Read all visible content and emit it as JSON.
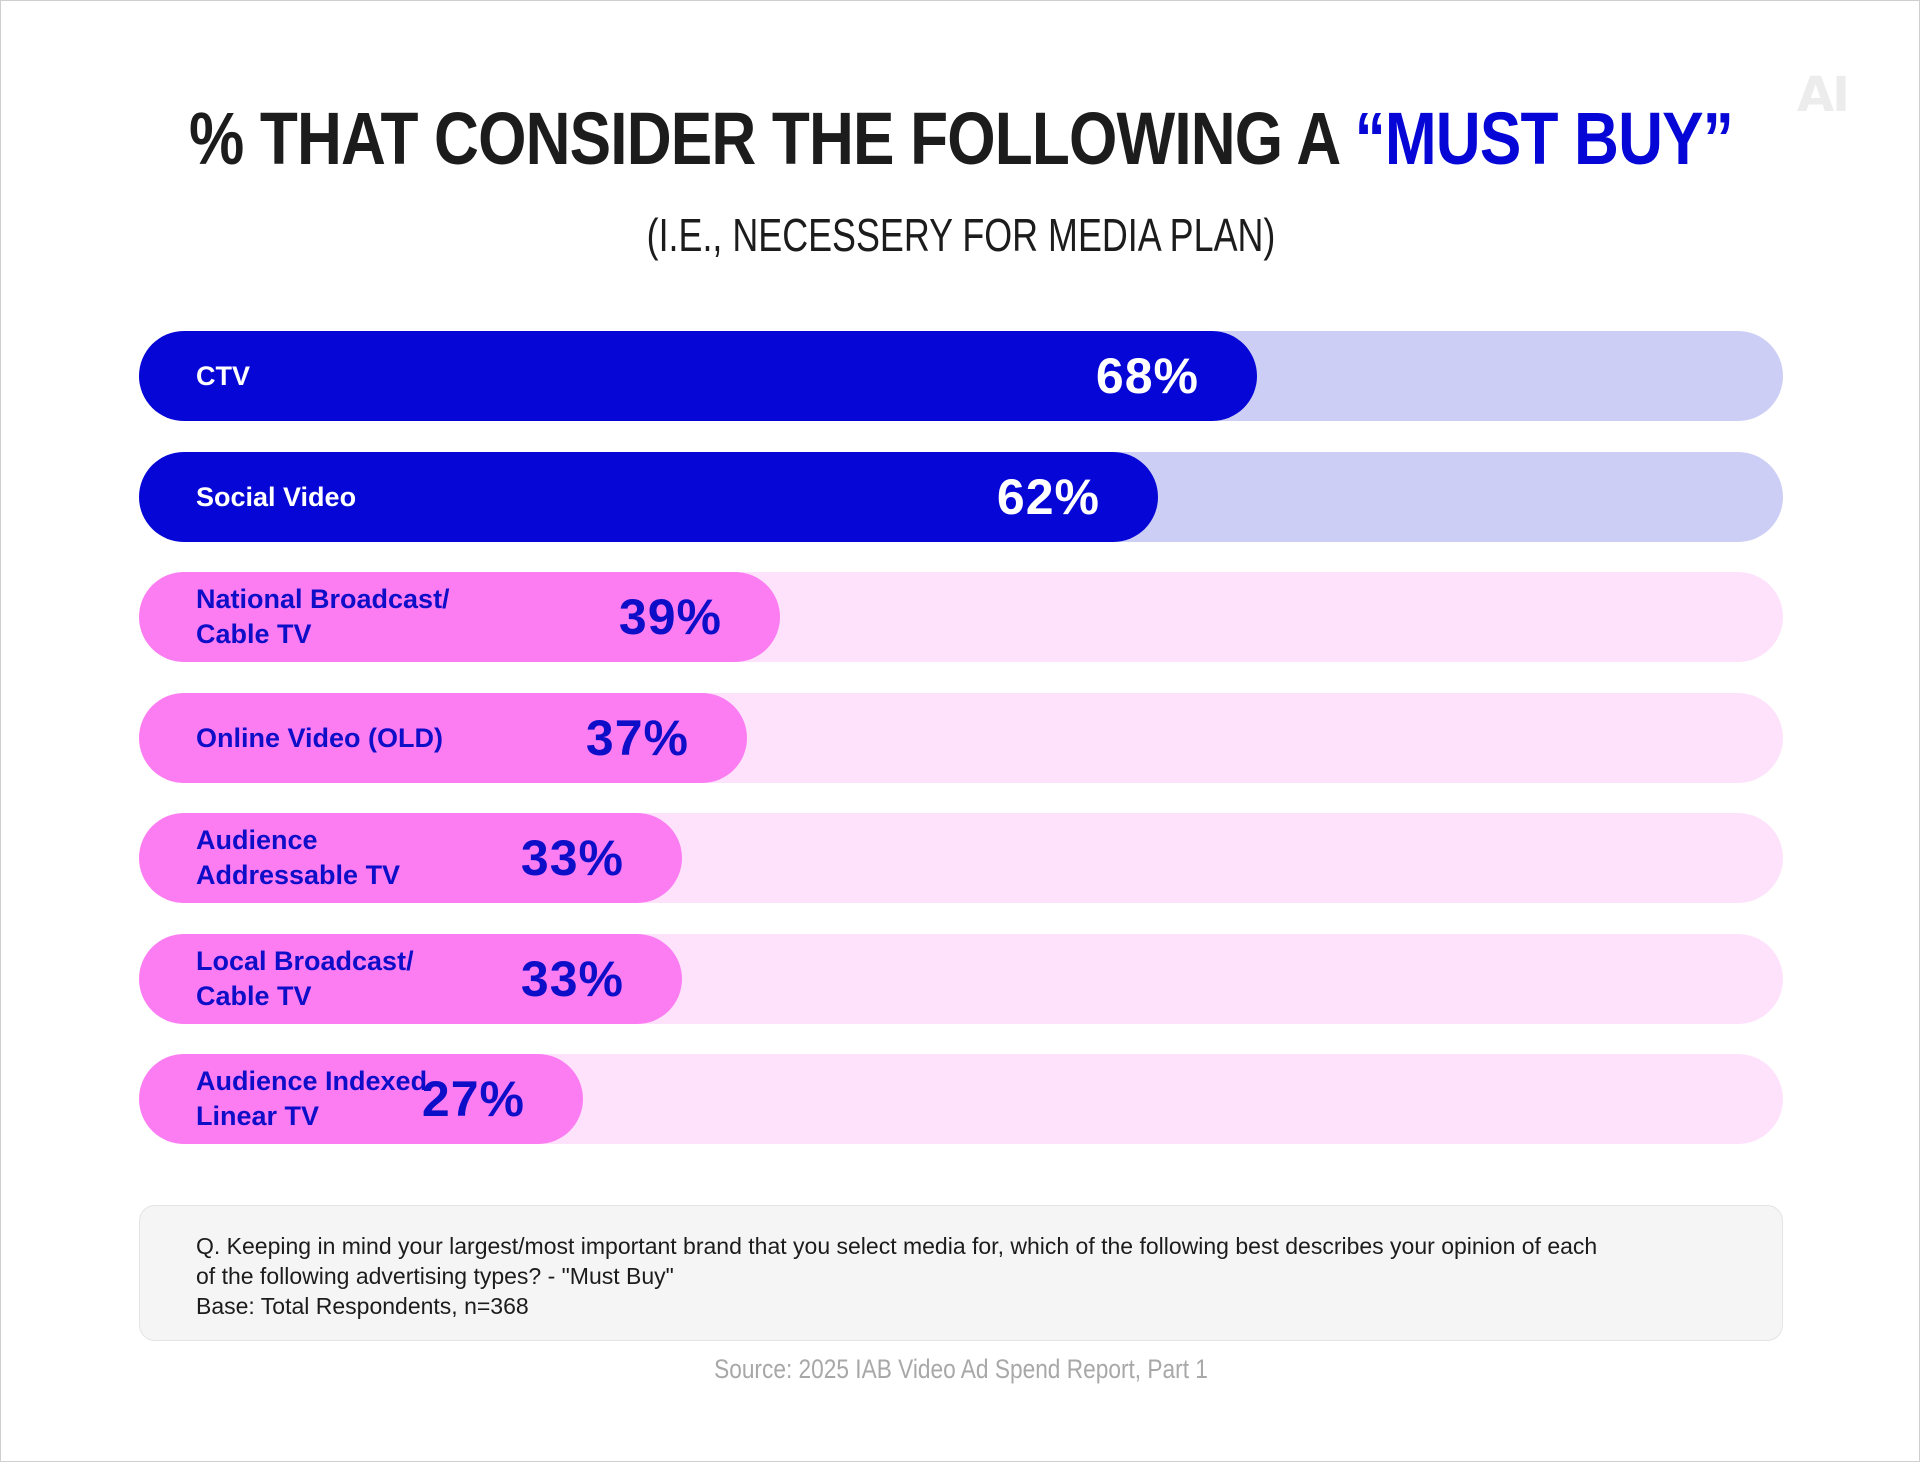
{
  "logo_text": "AI",
  "title": {
    "prefix": "% THAT CONSIDER THE FOLLOWING A ",
    "highlight": "“MUST BUY”"
  },
  "subtitle": "(I.E., NECESSERY FOR MEDIA PLAN)",
  "colors": {
    "blue": "#0606d6",
    "blue_track": "#cdcef5",
    "pink": "#fc7df2",
    "pink_track": "#fee2fc",
    "blue_text": "#ffffff",
    "pink_text": "#0e0ec8"
  },
  "chart_data": {
    "type": "bar",
    "orientation": "horizontal",
    "title": "% THAT CONSIDER THE FOLLOWING A “MUST BUY”",
    "subtitle": "(I.E., NECESSERY FOR MEDIA PLAN)",
    "xlim": [
      0,
      100
    ],
    "value_suffix": "%",
    "categories": [
      "CTV",
      "Social Video",
      "National Broadcast/\nCable TV",
      "Online Video (OLD)",
      "Audience\nAddressable TV",
      "Local Broadcast/\nCable TV",
      "Audience Indexed\nLinear TV"
    ],
    "values": [
      68,
      62,
      39,
      37,
      33,
      33,
      27
    ],
    "value_labels": [
      "68%",
      "62%",
      "39%",
      "37%",
      "33%",
      "33%",
      "27%"
    ],
    "groups": [
      "blue",
      "blue",
      "pink",
      "pink",
      "pink",
      "pink",
      "pink"
    ]
  },
  "note": {
    "line1": "Q. Keeping in mind your largest/most important brand that you select media for, which of the following best describes your opinion of each",
    "line2": "of the following advertising types? - \"Must Buy\"",
    "line3": "Base: Total Respondents, n=368"
  },
  "source": "Source: 2025 IAB Video Ad Spend Report, Part 1"
}
